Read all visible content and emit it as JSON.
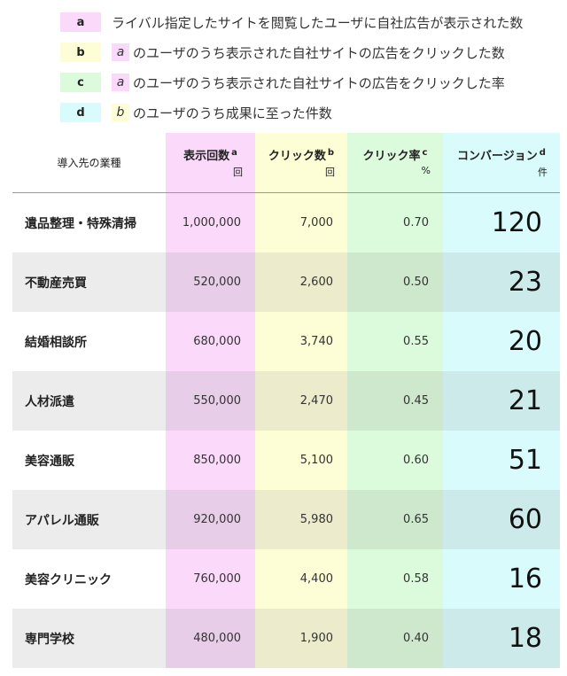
{
  "legend": [
    {
      "key": "a",
      "color": "#fbd9fb",
      "ref": "",
      "text": "ライバル指定したサイトを閲覧したユーザに自社広告が表示された数"
    },
    {
      "key": "b",
      "color": "#fefed6",
      "ref": "a",
      "ref_color": "#fbd9fb",
      "text": "のユーザのうち表示された自社サイトの広告をクリックした数"
    },
    {
      "key": "c",
      "color": "#dcfadc",
      "ref": "a",
      "ref_color": "#fbd9fb",
      "text": "のユーザのうち表示された自社サイトの広告をクリックした率"
    },
    {
      "key": "d",
      "color": "#d9fbfb",
      "ref": "b",
      "ref_color": "#fefed6",
      "text": "のユーザのうち成果に至った件数"
    }
  ],
  "table": {
    "headers": [
      {
        "label": "導入先の業種",
        "sup": "",
        "unit": ""
      },
      {
        "label": "表示回数",
        "sup": "a",
        "unit": "回"
      },
      {
        "label": "クリック数",
        "sup": "b",
        "unit": "回"
      },
      {
        "label": "クリック率",
        "sup": "c",
        "unit": "%"
      },
      {
        "label": "コンバージョン",
        "sup": "d",
        "unit": "件"
      }
    ],
    "rows": [
      {
        "industry": "遺品整理・特殊清掃",
        "impressions": "1,000,000",
        "clicks": "7,000",
        "ctr": "0.70",
        "conversions": "120"
      },
      {
        "industry": "不動産売買",
        "impressions": "520,000",
        "clicks": "2,600",
        "ctr": "0.50",
        "conversions": "23"
      },
      {
        "industry": "結婚相談所",
        "impressions": "680,000",
        "clicks": "3,740",
        "ctr": "0.55",
        "conversions": "20"
      },
      {
        "industry": "人材派遣",
        "impressions": "550,000",
        "clicks": "2,470",
        "ctr": "0.45",
        "conversions": "21"
      },
      {
        "industry": "美容通販",
        "impressions": "850,000",
        "clicks": "5,100",
        "ctr": "0.60",
        "conversions": "51"
      },
      {
        "industry": "アパレル通販",
        "impressions": "920,000",
        "clicks": "5,980",
        "ctr": "0.65",
        "conversions": "60"
      },
      {
        "industry": "美容クリニック",
        "impressions": "760,000",
        "clicks": "4,400",
        "ctr": "0.58",
        "conversions": "16"
      },
      {
        "industry": "専門学校",
        "impressions": "480,000",
        "clicks": "1,900",
        "ctr": "0.40",
        "conversions": "18"
      }
    ]
  }
}
